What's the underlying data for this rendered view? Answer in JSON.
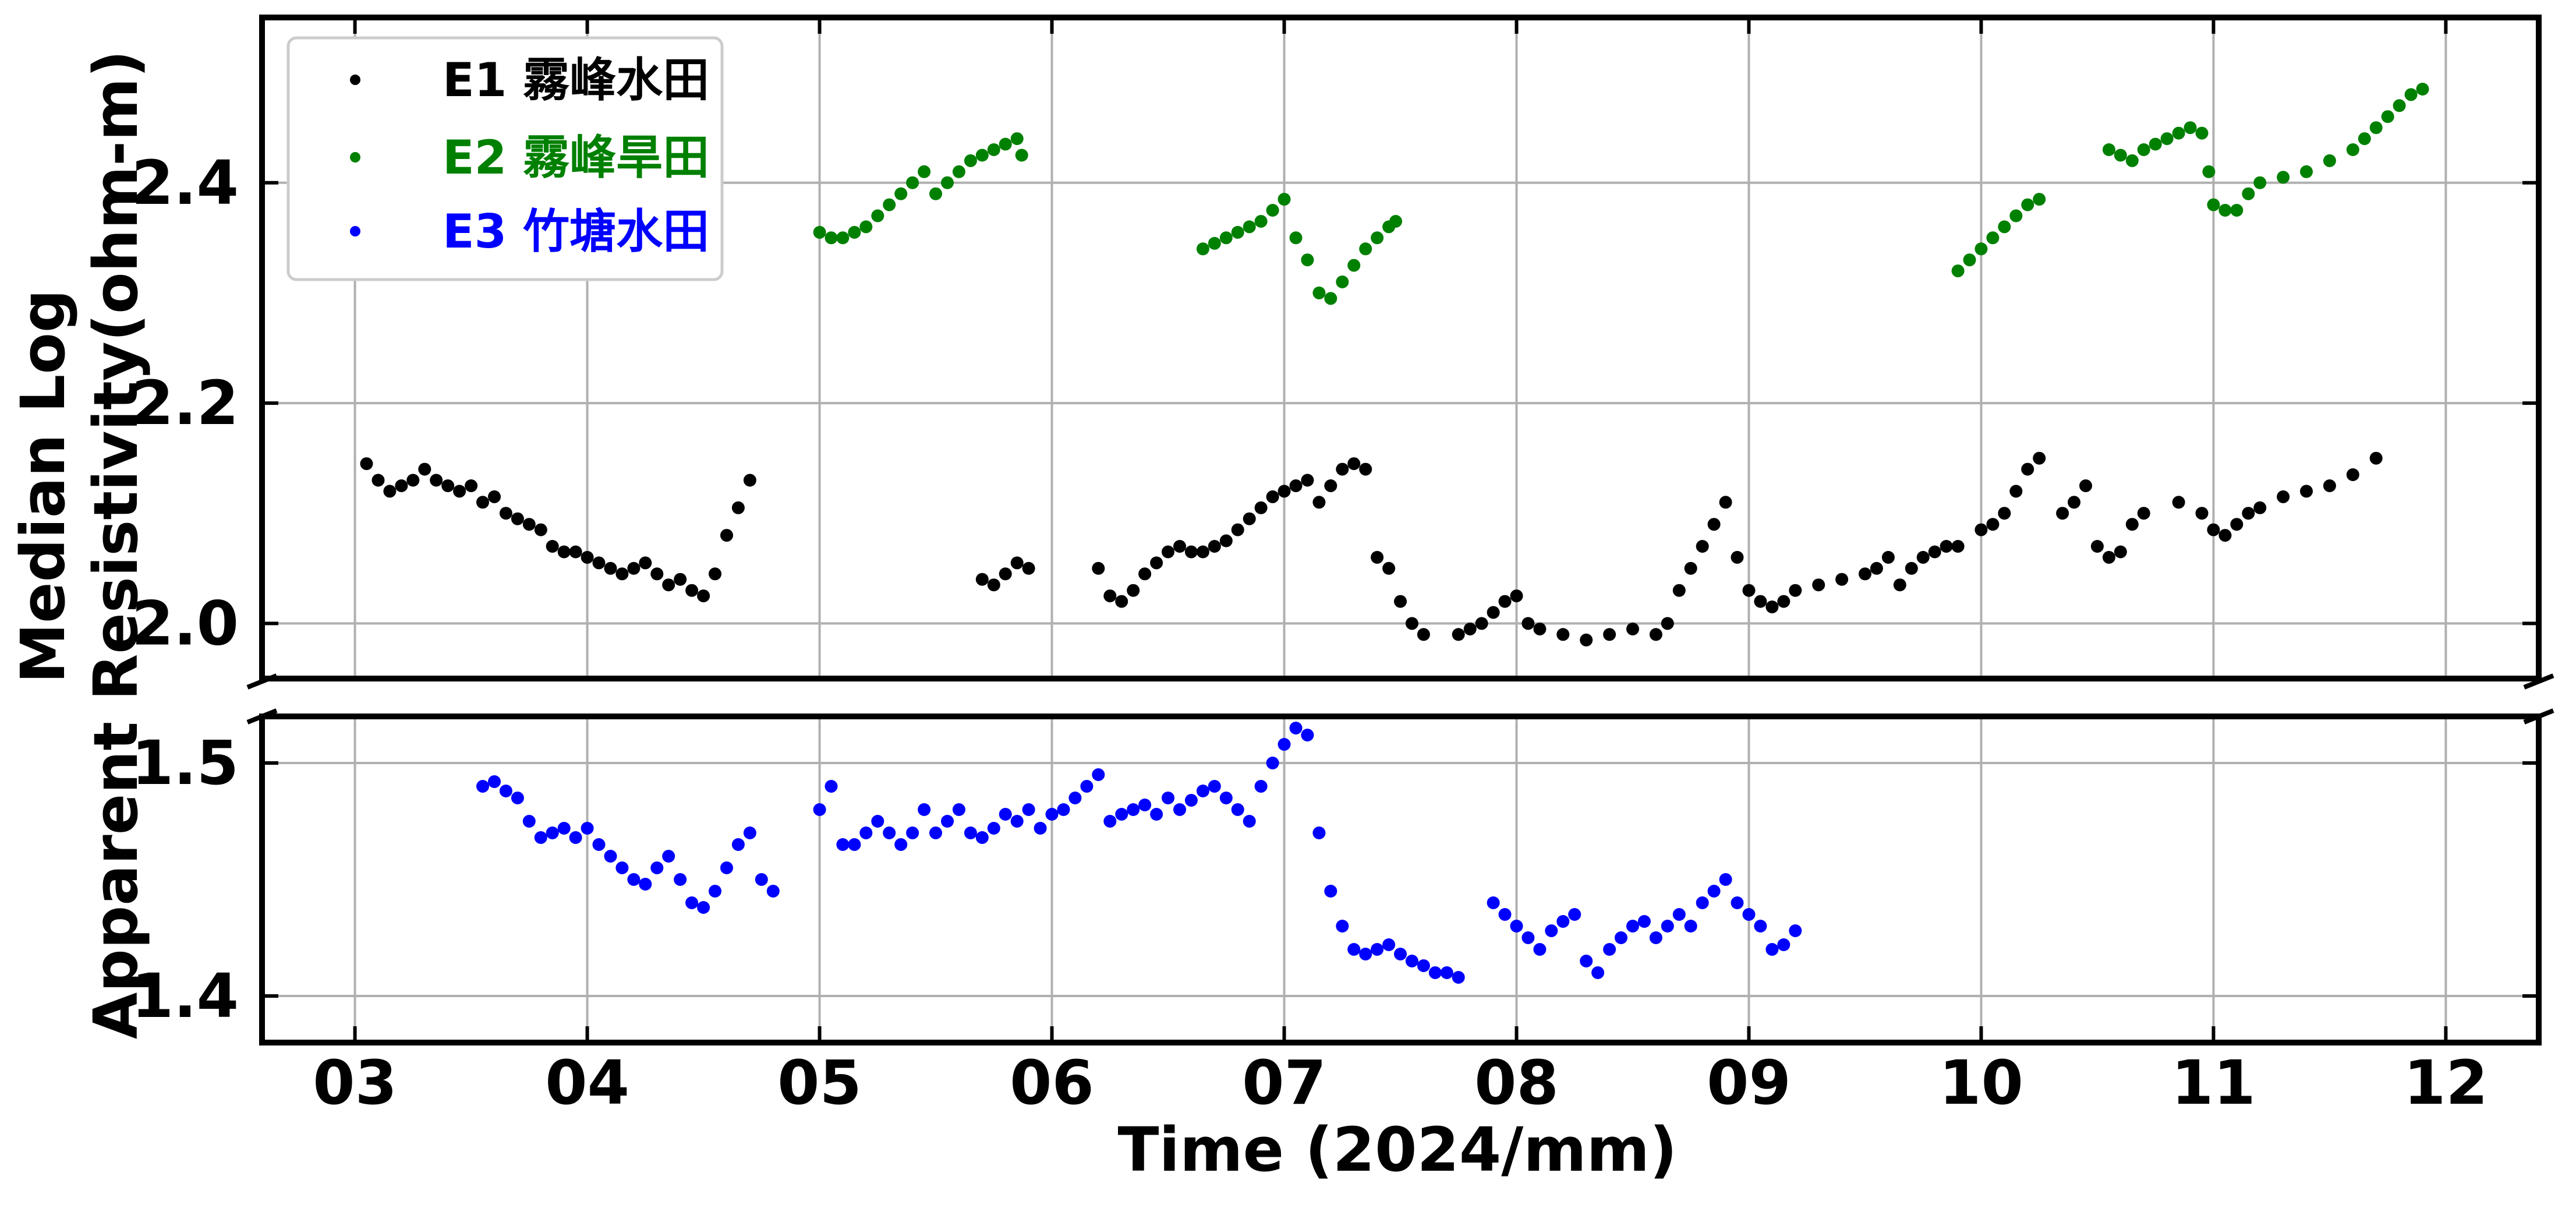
{
  "chart_data": {
    "type": "scatter",
    "xlabel": "Time (2024/mm)",
    "ylabel_lines": [
      "Median Log",
      "Apparent Resistivity(ohm-m)"
    ],
    "xlim": [
      2.6,
      12.4
    ],
    "upper_ylim": [
      1.95,
      2.55
    ],
    "lower_ylim": [
      1.38,
      1.52
    ],
    "x_tick_values": [
      3,
      4,
      5,
      6,
      7,
      8,
      9,
      10,
      11,
      12
    ],
    "x_tick_labels": [
      "03",
      "04",
      "05",
      "06",
      "07",
      "08",
      "09",
      "10",
      "11",
      "12"
    ],
    "upper_y_ticks": [
      {
        "value": 2.0,
        "label": "2.0"
      },
      {
        "value": 2.2,
        "label": "2.2"
      },
      {
        "value": 2.4,
        "label": "2.4"
      }
    ],
    "lower_y_ticks": [
      {
        "value": 1.4,
        "label": "1.4"
      },
      {
        "value": 1.5,
        "label": "1.5"
      }
    ],
    "grid": true,
    "broken_y_axis": true,
    "legend_position": "top-left",
    "series": [
      {
        "name": "E1 霧峰水田",
        "color": "#000000",
        "panel": "upper",
        "points": [
          [
            3.05,
            2.145
          ],
          [
            3.1,
            2.13
          ],
          [
            3.15,
            2.12
          ],
          [
            3.2,
            2.125
          ],
          [
            3.25,
            2.13
          ],
          [
            3.3,
            2.14
          ],
          [
            3.35,
            2.13
          ],
          [
            3.4,
            2.125
          ],
          [
            3.45,
            2.12
          ],
          [
            3.5,
            2.125
          ],
          [
            3.55,
            2.11
          ],
          [
            3.6,
            2.115
          ],
          [
            3.65,
            2.1
          ],
          [
            3.7,
            2.095
          ],
          [
            3.75,
            2.09
          ],
          [
            3.8,
            2.085
          ],
          [
            3.85,
            2.07
          ],
          [
            3.9,
            2.065
          ],
          [
            3.95,
            2.065
          ],
          [
            4.0,
            2.06
          ],
          [
            4.05,
            2.055
          ],
          [
            4.1,
            2.05
          ],
          [
            4.15,
            2.045
          ],
          [
            4.2,
            2.05
          ],
          [
            4.25,
            2.055
          ],
          [
            4.3,
            2.045
          ],
          [
            4.35,
            2.035
          ],
          [
            4.4,
            2.04
          ],
          [
            4.45,
            2.03
          ],
          [
            4.5,
            2.025
          ],
          [
            4.55,
            2.045
          ],
          [
            4.6,
            2.08
          ],
          [
            4.65,
            2.105
          ],
          [
            4.7,
            2.13
          ],
          [
            5.7,
            2.04
          ],
          [
            5.75,
            2.035
          ],
          [
            5.8,
            2.045
          ],
          [
            5.85,
            2.055
          ],
          [
            5.9,
            2.05
          ],
          [
            6.2,
            2.05
          ],
          [
            6.25,
            2.025
          ],
          [
            6.3,
            2.02
          ],
          [
            6.35,
            2.03
          ],
          [
            6.4,
            2.045
          ],
          [
            6.45,
            2.055
          ],
          [
            6.5,
            2.065
          ],
          [
            6.55,
            2.07
          ],
          [
            6.6,
            2.065
          ],
          [
            6.65,
            2.065
          ],
          [
            6.7,
            2.07
          ],
          [
            6.75,
            2.075
          ],
          [
            6.8,
            2.085
          ],
          [
            6.85,
            2.095
          ],
          [
            6.9,
            2.105
          ],
          [
            6.95,
            2.115
          ],
          [
            7.0,
            2.12
          ],
          [
            7.05,
            2.125
          ],
          [
            7.1,
            2.13
          ],
          [
            7.15,
            2.11
          ],
          [
            7.2,
            2.125
          ],
          [
            7.25,
            2.14
          ],
          [
            7.3,
            2.145
          ],
          [
            7.35,
            2.14
          ],
          [
            7.4,
            2.06
          ],
          [
            7.45,
            2.05
          ],
          [
            7.5,
            2.02
          ],
          [
            7.55,
            2.0
          ],
          [
            7.6,
            1.99
          ],
          [
            7.75,
            1.99
          ],
          [
            7.8,
            1.995
          ],
          [
            7.85,
            2.0
          ],
          [
            7.9,
            2.01
          ],
          [
            7.95,
            2.02
          ],
          [
            8.0,
            2.025
          ],
          [
            8.05,
            2.0
          ],
          [
            8.1,
            1.995
          ],
          [
            8.2,
            1.99
          ],
          [
            8.3,
            1.985
          ],
          [
            8.4,
            1.99
          ],
          [
            8.5,
            1.995
          ],
          [
            8.6,
            1.99
          ],
          [
            8.65,
            2.0
          ],
          [
            8.7,
            2.03
          ],
          [
            8.75,
            2.05
          ],
          [
            8.8,
            2.07
          ],
          [
            8.85,
            2.09
          ],
          [
            8.9,
            2.11
          ],
          [
            8.95,
            2.06
          ],
          [
            9.0,
            2.03
          ],
          [
            9.05,
            2.02
          ],
          [
            9.1,
            2.015
          ],
          [
            9.15,
            2.02
          ],
          [
            9.2,
            2.03
          ],
          [
            9.3,
            2.035
          ],
          [
            9.4,
            2.04
          ],
          [
            9.5,
            2.045
          ],
          [
            9.55,
            2.05
          ],
          [
            9.6,
            2.06
          ],
          [
            9.65,
            2.035
          ],
          [
            9.7,
            2.05
          ],
          [
            9.75,
            2.06
          ],
          [
            9.8,
            2.065
          ],
          [
            9.85,
            2.07
          ],
          [
            9.9,
            2.07
          ],
          [
            10.0,
            2.085
          ],
          [
            10.05,
            2.09
          ],
          [
            10.1,
            2.1
          ],
          [
            10.15,
            2.12
          ],
          [
            10.2,
            2.14
          ],
          [
            10.25,
            2.15
          ],
          [
            10.35,
            2.1
          ],
          [
            10.4,
            2.11
          ],
          [
            10.45,
            2.125
          ],
          [
            10.5,
            2.07
          ],
          [
            10.55,
            2.06
          ],
          [
            10.6,
            2.065
          ],
          [
            10.65,
            2.09
          ],
          [
            10.7,
            2.1
          ],
          [
            10.85,
            2.11
          ],
          [
            10.95,
            2.1
          ],
          [
            11.0,
            2.085
          ],
          [
            11.05,
            2.08
          ],
          [
            11.1,
            2.09
          ],
          [
            11.15,
            2.1
          ],
          [
            11.2,
            2.105
          ],
          [
            11.3,
            2.115
          ],
          [
            11.4,
            2.12
          ],
          [
            11.5,
            2.125
          ],
          [
            11.6,
            2.135
          ],
          [
            11.7,
            2.15
          ]
        ]
      },
      {
        "name": "E2 霧峰旱田",
        "color": "#008000",
        "panel": "upper",
        "points": [
          [
            5.0,
            2.355
          ],
          [
            5.05,
            2.35
          ],
          [
            5.1,
            2.35
          ],
          [
            5.15,
            2.355
          ],
          [
            5.2,
            2.36
          ],
          [
            5.25,
            2.37
          ],
          [
            5.3,
            2.38
          ],
          [
            5.35,
            2.39
          ],
          [
            5.4,
            2.4
          ],
          [
            5.45,
            2.41
          ],
          [
            5.5,
            2.39
          ],
          [
            5.55,
            2.4
          ],
          [
            5.6,
            2.41
          ],
          [
            5.65,
            2.42
          ],
          [
            5.7,
            2.425
          ],
          [
            5.75,
            2.43
          ],
          [
            5.8,
            2.435
          ],
          [
            5.85,
            2.44
          ],
          [
            5.87,
            2.425
          ],
          [
            6.65,
            2.34
          ],
          [
            6.7,
            2.345
          ],
          [
            6.75,
            2.35
          ],
          [
            6.8,
            2.355
          ],
          [
            6.85,
            2.36
          ],
          [
            6.9,
            2.365
          ],
          [
            6.95,
            2.375
          ],
          [
            7.0,
            2.385
          ],
          [
            7.05,
            2.35
          ],
          [
            7.1,
            2.33
          ],
          [
            7.15,
            2.3
          ],
          [
            7.2,
            2.295
          ],
          [
            7.25,
            2.31
          ],
          [
            7.3,
            2.325
          ],
          [
            7.35,
            2.34
          ],
          [
            7.4,
            2.35
          ],
          [
            7.45,
            2.36
          ],
          [
            7.48,
            2.365
          ],
          [
            9.9,
            2.32
          ],
          [
            9.95,
            2.33
          ],
          [
            10.0,
            2.34
          ],
          [
            10.05,
            2.35
          ],
          [
            10.1,
            2.36
          ],
          [
            10.15,
            2.37
          ],
          [
            10.2,
            2.38
          ],
          [
            10.25,
            2.385
          ],
          [
            10.55,
            2.43
          ],
          [
            10.6,
            2.425
          ],
          [
            10.65,
            2.42
          ],
          [
            10.7,
            2.43
          ],
          [
            10.75,
            2.435
          ],
          [
            10.8,
            2.44
          ],
          [
            10.85,
            2.445
          ],
          [
            10.9,
            2.45
          ],
          [
            10.95,
            2.445
          ],
          [
            10.98,
            2.41
          ],
          [
            11.0,
            2.38
          ],
          [
            11.05,
            2.375
          ],
          [
            11.1,
            2.375
          ],
          [
            11.15,
            2.39
          ],
          [
            11.2,
            2.4
          ],
          [
            11.3,
            2.405
          ],
          [
            11.4,
            2.41
          ],
          [
            11.5,
            2.42
          ],
          [
            11.6,
            2.43
          ],
          [
            11.65,
            2.44
          ],
          [
            11.7,
            2.45
          ],
          [
            11.75,
            2.46
          ],
          [
            11.8,
            2.47
          ],
          [
            11.85,
            2.48
          ],
          [
            11.9,
            2.485
          ]
        ]
      },
      {
        "name": "E3 竹塘水田",
        "color": "#0000ff",
        "panel": "lower",
        "points": [
          [
            3.55,
            1.49
          ],
          [
            3.6,
            1.492
          ],
          [
            3.65,
            1.488
          ],
          [
            3.7,
            1.485
          ],
          [
            3.75,
            1.475
          ],
          [
            3.8,
            1.468
          ],
          [
            3.85,
            1.47
          ],
          [
            3.9,
            1.472
          ],
          [
            3.95,
            1.468
          ],
          [
            4.0,
            1.472
          ],
          [
            4.05,
            1.465
          ],
          [
            4.1,
            1.46
          ],
          [
            4.15,
            1.455
          ],
          [
            4.2,
            1.45
          ],
          [
            4.25,
            1.448
          ],
          [
            4.3,
            1.455
          ],
          [
            4.35,
            1.46
          ],
          [
            4.4,
            1.45
          ],
          [
            4.45,
            1.44
          ],
          [
            4.5,
            1.438
          ],
          [
            4.55,
            1.445
          ],
          [
            4.6,
            1.455
          ],
          [
            4.65,
            1.465
          ],
          [
            4.7,
            1.47
          ],
          [
            4.75,
            1.45
          ],
          [
            4.8,
            1.445
          ],
          [
            5.0,
            1.48
          ],
          [
            5.05,
            1.49
          ],
          [
            5.1,
            1.465
          ],
          [
            5.15,
            1.465
          ],
          [
            5.2,
            1.47
          ],
          [
            5.25,
            1.475
          ],
          [
            5.3,
            1.47
          ],
          [
            5.35,
            1.465
          ],
          [
            5.4,
            1.47
          ],
          [
            5.45,
            1.48
          ],
          [
            5.5,
            1.47
          ],
          [
            5.55,
            1.475
          ],
          [
            5.6,
            1.48
          ],
          [
            5.65,
            1.47
          ],
          [
            5.7,
            1.468
          ],
          [
            5.75,
            1.472
          ],
          [
            5.8,
            1.478
          ],
          [
            5.85,
            1.475
          ],
          [
            5.9,
            1.48
          ],
          [
            5.95,
            1.472
          ],
          [
            6.0,
            1.478
          ],
          [
            6.05,
            1.48
          ],
          [
            6.1,
            1.485
          ],
          [
            6.15,
            1.49
          ],
          [
            6.2,
            1.495
          ],
          [
            6.25,
            1.475
          ],
          [
            6.3,
            1.478
          ],
          [
            6.35,
            1.48
          ],
          [
            6.4,
            1.482
          ],
          [
            6.45,
            1.478
          ],
          [
            6.5,
            1.485
          ],
          [
            6.55,
            1.48
          ],
          [
            6.6,
            1.484
          ],
          [
            6.65,
            1.488
          ],
          [
            6.7,
            1.49
          ],
          [
            6.75,
            1.485
          ],
          [
            6.8,
            1.48
          ],
          [
            6.85,
            1.475
          ],
          [
            6.9,
            1.49
          ],
          [
            6.95,
            1.5
          ],
          [
            7.0,
            1.508
          ],
          [
            7.05,
            1.515
          ],
          [
            7.1,
            1.512
          ],
          [
            7.15,
            1.47
          ],
          [
            7.2,
            1.445
          ],
          [
            7.25,
            1.43
          ],
          [
            7.3,
            1.42
          ],
          [
            7.35,
            1.418
          ],
          [
            7.4,
            1.42
          ],
          [
            7.45,
            1.422
          ],
          [
            7.5,
            1.418
          ],
          [
            7.55,
            1.415
          ],
          [
            7.6,
            1.413
          ],
          [
            7.65,
            1.41
          ],
          [
            7.7,
            1.41
          ],
          [
            7.75,
            1.408
          ],
          [
            7.9,
            1.44
          ],
          [
            7.95,
            1.435
          ],
          [
            8.0,
            1.43
          ],
          [
            8.05,
            1.425
          ],
          [
            8.1,
            1.42
          ],
          [
            8.15,
            1.428
          ],
          [
            8.2,
            1.432
          ],
          [
            8.25,
            1.435
          ],
          [
            8.3,
            1.415
          ],
          [
            8.35,
            1.41
          ],
          [
            8.4,
            1.42
          ],
          [
            8.45,
            1.425
          ],
          [
            8.5,
            1.43
          ],
          [
            8.55,
            1.432
          ],
          [
            8.6,
            1.425
          ],
          [
            8.65,
            1.43
          ],
          [
            8.7,
            1.435
          ],
          [
            8.75,
            1.43
          ],
          [
            8.8,
            1.44
          ],
          [
            8.85,
            1.445
          ],
          [
            8.9,
            1.45
          ],
          [
            8.95,
            1.44
          ],
          [
            9.0,
            1.435
          ],
          [
            9.05,
            1.43
          ],
          [
            9.1,
            1.42
          ],
          [
            9.15,
            1.422
          ],
          [
            9.2,
            1.428
          ]
        ]
      }
    ]
  }
}
